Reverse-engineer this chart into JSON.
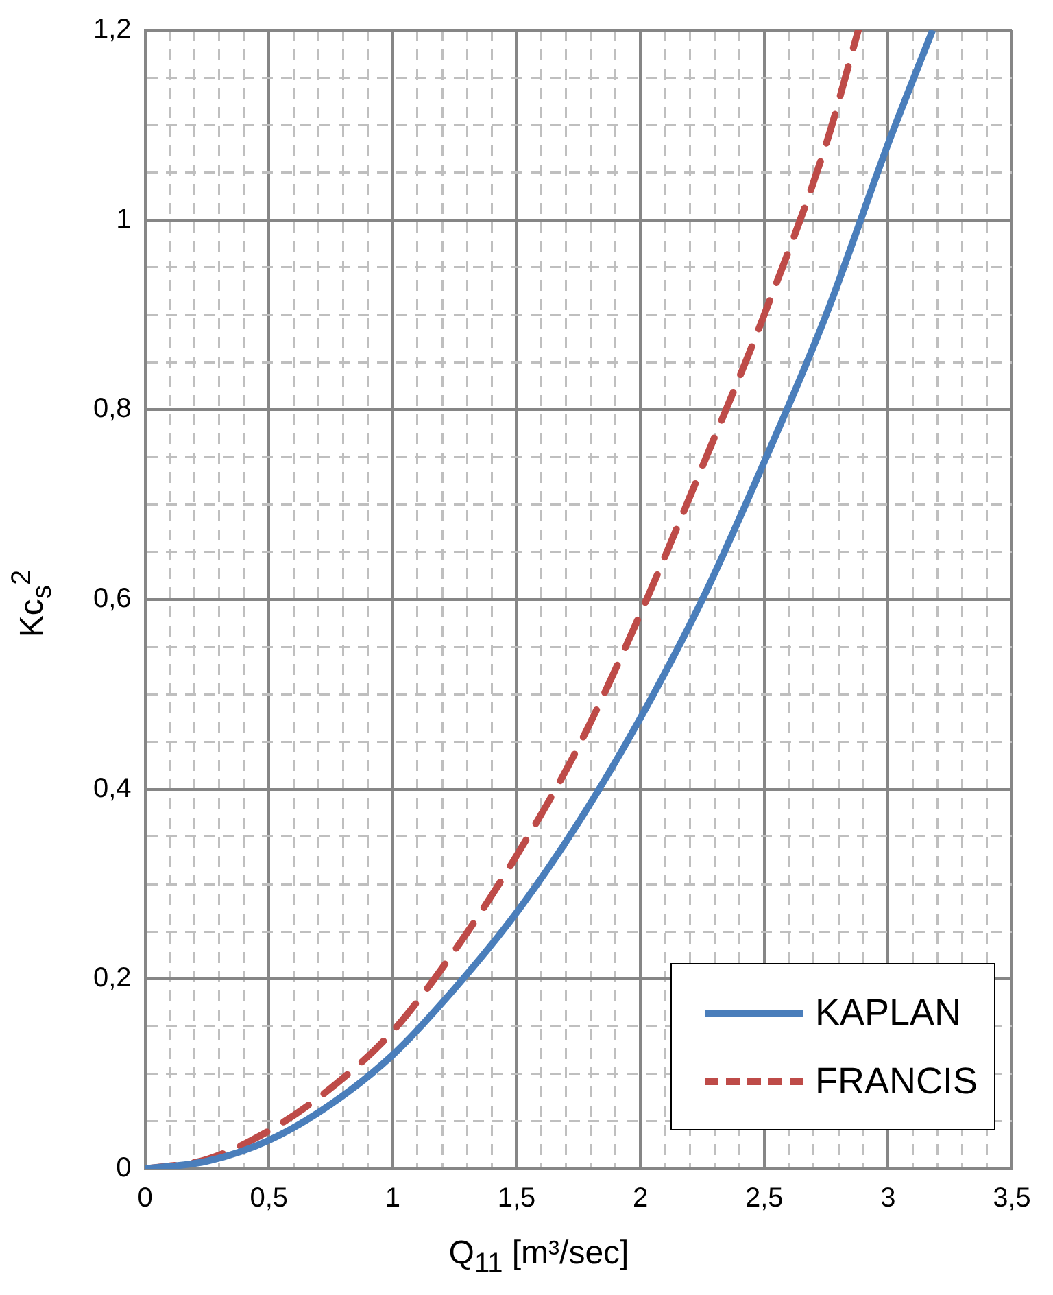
{
  "chart_data": {
    "type": "line",
    "xlabel": "Q$_{11}$ [m³/sec]",
    "ylabel": "Kc$_{s}$$^{2}$",
    "xlim": [
      0,
      3.5
    ],
    "ylim": [
      0,
      1.2
    ],
    "xticks": [
      0,
      {
        "value": 0.1,
        "label": null
      },
      {
        "value": 0.2,
        "label": null
      },
      {
        "value": 0.3,
        "label": null
      },
      {
        "value": 0.4,
        "label": null
      },
      {
        "value": 0.5,
        "label": "0,5"
      },
      {
        "value": 0.6,
        "label": null
      },
      {
        "value": 0.7,
        "label": null
      },
      {
        "value": 0.8,
        "label": null
      },
      {
        "value": 0.9,
        "label": null
      },
      1,
      {
        "value": 1.1,
        "label": null
      },
      {
        "value": 1.2,
        "label": null
      },
      {
        "value": 1.3,
        "label": null
      },
      {
        "value": 1.4,
        "label": null
      },
      {
        "value": 1.5,
        "label": "1,5"
      },
      {
        "value": 1.6,
        "label": null
      },
      {
        "value": 1.7,
        "label": null
      },
      {
        "value": 1.8,
        "label": null
      },
      {
        "value": 1.9,
        "label": null
      },
      2,
      {
        "value": 2.1,
        "label": null
      },
      {
        "value": 2.2,
        "label": null
      },
      {
        "value": 2.3,
        "label": null
      },
      {
        "value": 2.4,
        "label": null
      },
      {
        "value": 2.5,
        "label": "2,5"
      },
      {
        "value": 2.6,
        "label": null
      },
      {
        "value": 2.7,
        "label": null
      },
      {
        "value": 2.8,
        "label": null
      },
      {
        "value": 2.9,
        "label": null
      },
      3,
      {
        "value": 3.1,
        "label": null
      },
      {
        "value": 3.2,
        "label": null
      },
      {
        "value": 3.3,
        "label": null
      },
      {
        "value": 3.4,
        "label": null
      },
      {
        "value": 3.5,
        "label": "3,5"
      }
    ],
    "yticks": [
      0,
      {
        "value": 0.05,
        "label": null
      },
      {
        "value": 0.1,
        "label": null
      },
      {
        "value": 0.15,
        "label": null
      },
      {
        "value": 0.2,
        "label": "0,2"
      },
      {
        "value": 0.25,
        "label": null
      },
      {
        "value": 0.3,
        "label": null
      },
      {
        "value": 0.35,
        "label": null
      },
      {
        "value": 0.4,
        "label": "0,4"
      },
      {
        "value": 0.45,
        "label": null
      },
      {
        "value": 0.5,
        "label": null
      },
      {
        "value": 0.55,
        "label": null
      },
      {
        "value": 0.6,
        "label": "0,6"
      },
      {
        "value": 0.65,
        "label": null
      },
      {
        "value": 0.7,
        "label": null
      },
      {
        "value": 0.75,
        "label": null
      },
      {
        "value": 0.8,
        "label": "0,8"
      },
      {
        "value": 0.85,
        "label": null
      },
      {
        "value": 0.9,
        "label": null
      },
      {
        "value": 0.95,
        "label": null
      },
      1,
      {
        "value": 1.05,
        "label": null
      },
      {
        "value": 1.1,
        "label": null
      },
      {
        "value": 1.15,
        "label": null
      },
      {
        "value": 1.2,
        "label": "1,2"
      }
    ],
    "grid": true,
    "legend": "bottom right",
    "marker": "none",
    "series": [
      {
        "name": "KAPLAN",
        "color": "#4a7ebb",
        "line_style": "solid",
        "x": [
          0,
          0.25,
          0.5,
          0.75,
          1,
          1.25,
          1.5,
          1.75,
          2,
          2.25,
          2.5,
          2.75,
          3,
          3.18
        ],
        "values": [
          0,
          0.008,
          0.03,
          0.068,
          0.12,
          0.19,
          0.27,
          0.365,
          0.475,
          0.6,
          0.745,
          0.9,
          1.08,
          1.2
        ]
      },
      {
        "name": "FRANCIS",
        "color": "#be4b48",
        "line_style": "dashed",
        "x": [
          0,
          0.25,
          0.5,
          0.75,
          1,
          1.25,
          1.5,
          1.75,
          2,
          2.25,
          2.5,
          2.75,
          2.88
        ],
        "values": [
          0,
          0.01,
          0.04,
          0.085,
          0.145,
          0.23,
          0.33,
          0.445,
          0.585,
          0.74,
          0.9,
          1.08,
          1.2
        ]
      }
    ]
  }
}
